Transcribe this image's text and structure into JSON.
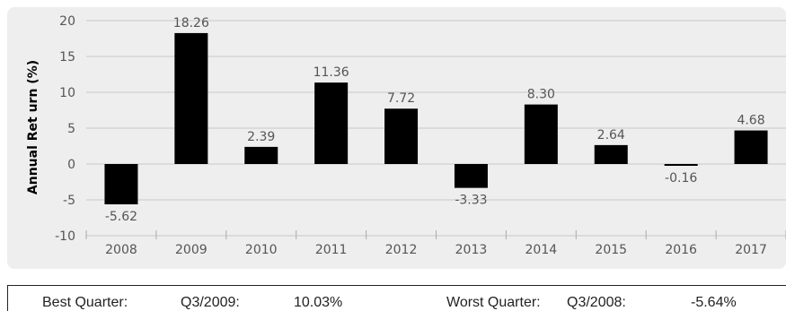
{
  "chart_data": {
    "type": "bar",
    "ylabel": "Annual Ret urn (%)",
    "xlabel": "",
    "categories": [
      "2008",
      "2009",
      "2010",
      "2011",
      "2012",
      "2013",
      "2014",
      "2015",
      "2016",
      "2017"
    ],
    "values": [
      -5.62,
      18.26,
      2.39,
      11.36,
      7.72,
      -3.33,
      8.3,
      2.64,
      -0.16,
      4.68
    ],
    "value_labels": [
      "-5.62",
      "18.26",
      "2.39",
      "11.36",
      "7.72",
      "-3.33",
      "8.30",
      "2.64",
      "-0.16",
      "4.68"
    ],
    "ylim": [
      -10,
      20
    ],
    "yticks": [
      20,
      15,
      10,
      5,
      0,
      -5,
      -10
    ],
    "grid": true,
    "bar_color": "#000000",
    "plot_background": "#eeeeee"
  },
  "quarters": {
    "best_label": "Best Quarter:",
    "best_period": "Q3/2009:",
    "best_value": "10.03%",
    "worst_label": "Worst Quarter:",
    "worst_period": "Q3/2008:",
    "worst_value": "-5.64%"
  }
}
